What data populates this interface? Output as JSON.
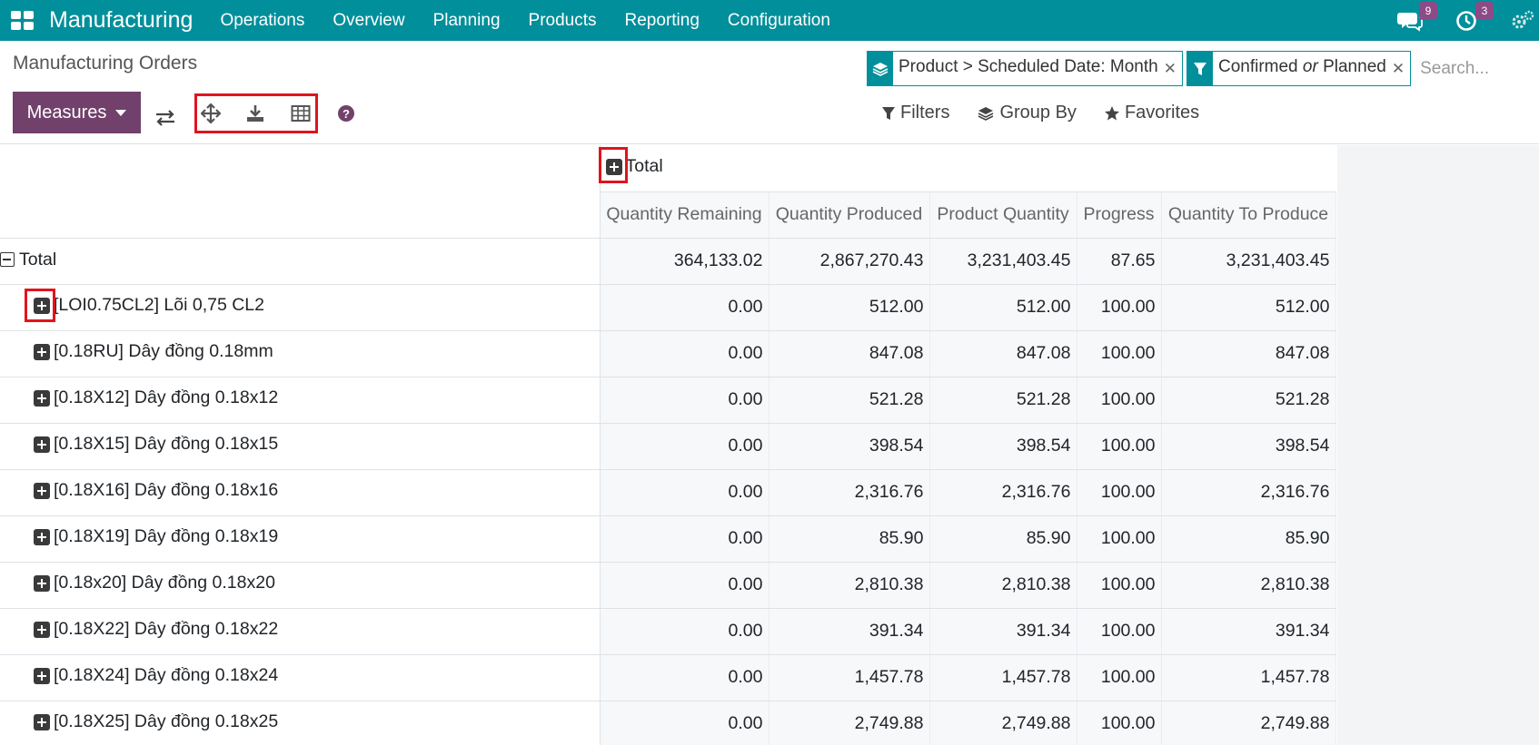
{
  "navbar": {
    "brand": "Manufacturing",
    "menu": [
      "Operations",
      "Overview",
      "Planning",
      "Products",
      "Reporting",
      "Configuration"
    ],
    "messages_badge": "9",
    "activities_badge": "3"
  },
  "breadcrumb": "Manufacturing Orders",
  "search": {
    "facets": [
      {
        "text": "Product > Scheduled Date: Month"
      },
      {
        "text_before": "Confirmed",
        "connector": "or",
        "text_after": "Planned"
      }
    ],
    "placeholder": "Search..."
  },
  "toolbar": {
    "measures_label": "Measures",
    "filters_label": "Filters",
    "groupby_label": "Group By",
    "favorites_label": "Favorites"
  },
  "pivot": {
    "column_header": "Total",
    "measures": [
      "Quantity Remaining",
      "Quantity Produced",
      "Product Quantity",
      "Progress",
      "Quantity To Produce"
    ],
    "total_row": {
      "label": "Total",
      "values": [
        "364,133.02",
        "2,867,270.43",
        "3,231,403.45",
        "87.65",
        "3,231,403.45"
      ]
    },
    "rows": [
      {
        "label": "[LOI0.75CL2] Lõi 0,75 CL2",
        "values": [
          "0.00",
          "512.00",
          "512.00",
          "100.00",
          "512.00"
        ]
      },
      {
        "label": "[0.18RU] Dây đồng 0.18mm",
        "values": [
          "0.00",
          "847.08",
          "847.08",
          "100.00",
          "847.08"
        ]
      },
      {
        "label": "[0.18X12] Dây đồng 0.18x12",
        "values": [
          "0.00",
          "521.28",
          "521.28",
          "100.00",
          "521.28"
        ]
      },
      {
        "label": "[0.18X15] Dây đồng 0.18x15",
        "values": [
          "0.00",
          "398.54",
          "398.54",
          "100.00",
          "398.54"
        ]
      },
      {
        "label": "[0.18X16] Dây đồng 0.18x16",
        "values": [
          "0.00",
          "2,316.76",
          "2,316.76",
          "100.00",
          "2,316.76"
        ]
      },
      {
        "label": "[0.18X19] Dây đồng 0.18x19",
        "values": [
          "0.00",
          "85.90",
          "85.90",
          "100.00",
          "85.90"
        ]
      },
      {
        "label": "[0.18x20] Dây đồng 0.18x20",
        "values": [
          "0.00",
          "2,810.38",
          "2,810.38",
          "100.00",
          "2,810.38"
        ]
      },
      {
        "label": "[0.18X22] Dây đồng 0.18x22",
        "values": [
          "0.00",
          "391.34",
          "391.34",
          "100.00",
          "391.34"
        ]
      },
      {
        "label": "[0.18X24] Dây đồng 0.18x24",
        "values": [
          "0.00",
          "1,457.78",
          "1,457.78",
          "100.00",
          "1,457.78"
        ]
      },
      {
        "label": "[0.18X25] Dây đồng 0.18x25",
        "values": [
          "0.00",
          "2,749.88",
          "2,749.88",
          "100.00",
          "2,749.88"
        ]
      }
    ]
  },
  "colors": {
    "navbar": "#008f9b",
    "primary": "#71416b",
    "highlight": "#e0141e",
    "badge": "#8c4a86"
  }
}
